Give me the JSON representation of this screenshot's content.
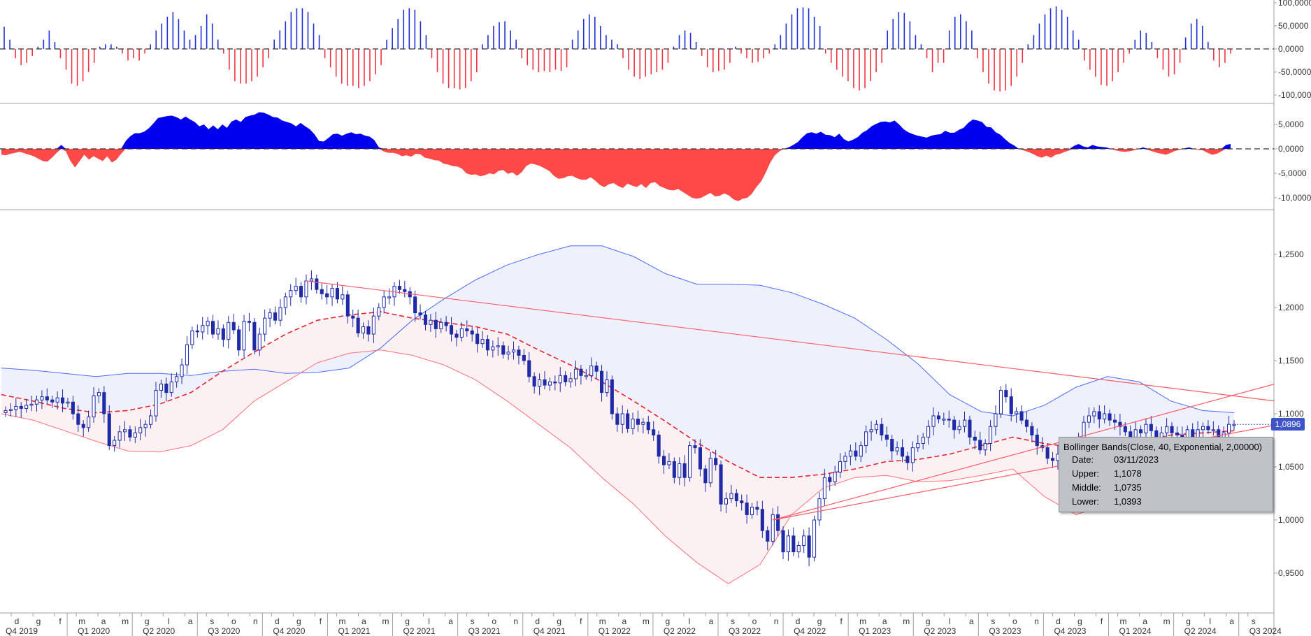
{
  "chart_data": [
    {
      "type": "bar",
      "panel": "oscillator-histogram",
      "title": "",
      "ylim": [
        -110000,
        100000
      ],
      "y_ticks": [
        "100,0000",
        "50,0000",
        "0,0000",
        "-50,0000",
        "-100,0000"
      ],
      "y_tick_values": [
        100000,
        50000,
        0,
        -50000,
        -100000
      ],
      "positive_color": "#1f2fd6",
      "negative_color": "#ee3344",
      "values": [
        48000,
        20000,
        -20000,
        -35000,
        -30000,
        -15000,
        5000,
        20000,
        40000,
        15000,
        -20000,
        -45000,
        -75000,
        -80000,
        -70000,
        -50000,
        -30000,
        5000,
        10000,
        10000,
        5000,
        -10000,
        -25000,
        -20000,
        -25000,
        -10000,
        10000,
        40000,
        55000,
        70000,
        80000,
        65000,
        40000,
        20000,
        30000,
        50000,
        75000,
        55000,
        20000,
        -10000,
        -45000,
        -70000,
        -75000,
        -75000,
        -70000,
        -60000,
        -40000,
        -20000,
        20000,
        40000,
        60000,
        80000,
        88000,
        88000,
        80000,
        55000,
        30000,
        -20000,
        -40000,
        -60000,
        -75000,
        -80000,
        -80000,
        -85000,
        -80000,
        -70000,
        -55000,
        -35000,
        20000,
        45000,
        65000,
        85000,
        88000,
        85000,
        60000,
        30000,
        -20000,
        -50000,
        -75000,
        -85000,
        -85000,
        -88000,
        -85000,
        -70000,
        -50000,
        10000,
        30000,
        50000,
        58000,
        60000,
        40000,
        20000,
        -20000,
        -35000,
        -45000,
        -50000,
        -48000,
        -50000,
        -45000,
        -48000,
        -40000,
        20000,
        40000,
        65000,
        75000,
        70000,
        50000,
        30000,
        20000,
        10000,
        -20000,
        -45000,
        -60000,
        -65000,
        -60000,
        -55000,
        -50000,
        -45000,
        -30000,
        5000,
        30000,
        40000,
        35000,
        15000,
        -15000,
        -40000,
        -50000,
        -48000,
        -45000,
        -30000,
        5000,
        -10000,
        -20000,
        -30000,
        -28000,
        -20000,
        -10000,
        10000,
        30000,
        55000,
        75000,
        88000,
        90000,
        88000,
        70000,
        50000,
        -10000,
        -30000,
        -45000,
        -60000,
        -70000,
        -85000,
        -90000,
        -85000,
        -70000,
        -50000,
        -30000,
        40000,
        65000,
        80000,
        78000,
        60000,
        30000,
        10000,
        -20000,
        -50000,
        -30000,
        -30000,
        40000,
        70000,
        75000,
        60000,
        40000,
        -20000,
        -50000,
        -75000,
        -90000,
        -92000,
        -90000,
        -80000,
        -60000,
        -30000,
        10000,
        30000,
        55000,
        75000,
        88000,
        92000,
        85000,
        70000,
        40000,
        20000,
        -25000,
        -45000,
        -60000,
        -78000,
        -80000,
        -70000,
        -50000,
        -30000,
        -10000,
        20000,
        40000,
        35000,
        15000,
        -20000,
        -45000,
        -60000,
        -55000,
        -30000,
        25000,
        55000,
        65000,
        50000,
        15000,
        -25000,
        -40000,
        -30000,
        -10000
      ]
    },
    {
      "type": "area",
      "panel": "oscillator-area",
      "title": "",
      "ylim": [
        -11500,
        8500
      ],
      "y_ticks": [
        "5,0000",
        "0,0000",
        "-5,0000",
        "-10,0000"
      ],
      "y_tick_values": [
        5000,
        0,
        -5000,
        -10000
      ],
      "positive_color": "#0000ee",
      "negative_color": "#ff4848",
      "values": [
        -1200,
        -1300,
        -1000,
        -800,
        -600,
        -900,
        -1200,
        -1500,
        -2000,
        -2500,
        -2600,
        -1800,
        -800,
        800,
        -500,
        -2500,
        -3800,
        -2500,
        -1200,
        -2200,
        -1500,
        -2000,
        -2500,
        -1500,
        -2800,
        -2200,
        -1000,
        1600,
        2600,
        3200,
        3200,
        3500,
        4200,
        5200,
        6300,
        6500,
        6700,
        6800,
        6500,
        6000,
        6600,
        6000,
        5500,
        4600,
        5000,
        4000,
        4800,
        4000,
        5000,
        4300,
        5600,
        6000,
        5500,
        6500,
        6800,
        7000,
        7500,
        7400,
        7000,
        6500,
        6400,
        5800,
        5500,
        5200,
        4600,
        5300,
        4600,
        4000,
        3000,
        1600,
        1500,
        2200,
        3000,
        3100,
        2700,
        3100,
        3400,
        3000,
        3100,
        2700,
        2500,
        1800,
        300,
        -500,
        -800,
        -800,
        -1000,
        -1500,
        -1300,
        -1600,
        -1000,
        -1100,
        -1800,
        -2000,
        -2300,
        -2400,
        -3000,
        -3200,
        -3500,
        -3600,
        -4000,
        -5000,
        -5300,
        -5200,
        -5600,
        -5400,
        -5000,
        -5200,
        -4500,
        -4300,
        -5100,
        -4800,
        -5500,
        -4800,
        -3500,
        -3000,
        -3200,
        -3500,
        -4000,
        -4500,
        -5500,
        -6100,
        -6000,
        -5600,
        -5500,
        -6000,
        -6300,
        -6300,
        -5800,
        -6500,
        -7400,
        -7800,
        -7200,
        -7000,
        -7600,
        -8000,
        -7100,
        -7500,
        -7800,
        -7200,
        -8000,
        -7000,
        -6800,
        -7600,
        -8000,
        -8400,
        -8500,
        -8200,
        -8800,
        -9400,
        -10000,
        -10200,
        -10000,
        -9500,
        -9000,
        -9700,
        -9600,
        -9100,
        -9500,
        -10300,
        -10700,
        -10200,
        -10000,
        -9200,
        -7800,
        -6700,
        -4900,
        -2800,
        -1300,
        -500,
        0,
        300,
        800,
        1400,
        2400,
        3200,
        3400,
        3100,
        3500,
        2900,
        2800,
        2400,
        3100,
        2000,
        1500,
        1900,
        2400,
        3300,
        3800,
        4600,
        5100,
        5500,
        5600,
        5400,
        5800,
        5000,
        4000,
        3400,
        3000,
        2700,
        2500,
        2300,
        2700,
        2900,
        3000,
        3700,
        3300,
        3300,
        3900,
        4300,
        5300,
        6000,
        5800,
        5500,
        4500,
        4400,
        3400,
        2900,
        2000,
        1200,
        700,
        0,
        -300,
        -600,
        -1000,
        -1500,
        -1800,
        -1400,
        -1800,
        -1200,
        -1000,
        -600,
        -300,
        600,
        1000,
        500,
        300,
        800,
        500,
        400,
        300,
        0,
        -300,
        -500,
        -600,
        -500,
        -300,
        0,
        300,
        -200,
        -500,
        -800,
        -1000,
        -1200,
        -800,
        -400,
        -200,
        100,
        300,
        0,
        -200,
        -300,
        -800,
        -1200,
        -1000,
        -500,
        800,
        1000
      ]
    },
    {
      "type": "candlestick",
      "panel": "price",
      "title": "",
      "ylim": [
        0.925,
        1.29
      ],
      "y_ticks": [
        "1,2500",
        "1,2000",
        "1,1500",
        "1,1000",
        "1,0500",
        "1,0000",
        "0,9500"
      ],
      "y_tick_values": [
        1.25,
        1.2,
        1.15,
        1.1,
        1.05,
        1.0,
        0.95
      ],
      "last_price_label": "1,0896",
      "up_color": "#ffffff",
      "down_color": "#1f2aa6",
      "candle_outline": "#1f2aa6",
      "series": [
        {
          "name": "close",
          "values": [
            1.103,
            1.104,
            1.107,
            1.105,
            1.108,
            1.109,
            1.113,
            1.116,
            1.113,
            1.111,
            1.115,
            1.11,
            1.111,
            1.1,
            1.09,
            1.087,
            1.097,
            1.117,
            1.12,
            1.1,
            1.07,
            1.075,
            1.083,
            1.085,
            1.078,
            1.082,
            1.087,
            1.09,
            1.098,
            1.122,
            1.128,
            1.12,
            1.13,
            1.135,
            1.146,
            1.165,
            1.178,
            1.177,
            1.183,
            1.187,
            1.175,
            1.18,
            1.17,
            1.186,
            1.179,
            1.16,
            1.187,
            1.186,
            1.16,
            1.175,
            1.19,
            1.195,
            1.188,
            1.2,
            1.21,
            1.216,
            1.22,
            1.21,
            1.225,
            1.227,
            1.217,
            1.213,
            1.21,
            1.218,
            1.208,
            1.212,
            1.192,
            1.19,
            1.176,
            1.182,
            1.175,
            1.192,
            1.2,
            1.21,
            1.21,
            1.22,
            1.217,
            1.215,
            1.21,
            1.195,
            1.193,
            1.184,
            1.188,
            1.18,
            1.186,
            1.183,
            1.175,
            1.172,
            1.18,
            1.178,
            1.175,
            1.166,
            1.17,
            1.16,
            1.163,
            1.164,
            1.156,
            1.158,
            1.16,
            1.155,
            1.15,
            1.135,
            1.126,
            1.132,
            1.127,
            1.13,
            1.129,
            1.136,
            1.13,
            1.133,
            1.142,
            1.136,
            1.136,
            1.145,
            1.14,
            1.12,
            1.132,
            1.1,
            1.09,
            1.1,
            1.086,
            1.095,
            1.09,
            1.092,
            1.085,
            1.08,
            1.06,
            1.052,
            1.055,
            1.04,
            1.053,
            1.04,
            1.07,
            1.068,
            1.048,
            1.035,
            1.058,
            1.052,
            1.015,
            1.02,
            1.025,
            1.018,
            1.016,
            1.005,
            1.012,
            1.01,
            0.99,
            0.98,
            1.005,
            0.99,
            0.97,
            0.985,
            0.97,
            0.976,
            0.985,
            0.965,
            1.0,
            1.02,
            1.04,
            1.036,
            1.045,
            1.055,
            1.06,
            1.065,
            1.06,
            1.07,
            1.083,
            1.085,
            1.09,
            1.08,
            1.076,
            1.065,
            1.068,
            1.06,
            1.054,
            1.068,
            1.072,
            1.078,
            1.088,
            1.098,
            1.095,
            1.095,
            1.094,
            1.085,
            1.088,
            1.094,
            1.078,
            1.075,
            1.066,
            1.072,
            1.088,
            1.1,
            1.122,
            1.116,
            1.1,
            1.102,
            1.094,
            1.088,
            1.08,
            1.07,
            1.068,
            1.058,
            1.056,
            1.062,
            1.064,
            1.06,
            1.07,
            1.078,
            1.092,
            1.098,
            1.102,
            1.095,
            1.1,
            1.094,
            1.092,
            1.088,
            1.083,
            1.078,
            1.085,
            1.082,
            1.09,
            1.084,
            1.075,
            1.082,
            1.088,
            1.082,
            1.08,
            1.072,
            1.085,
            1.074,
            1.085,
            1.088,
            1.085,
            1.085,
            1.075,
            1.082,
            1.09,
            1.09
          ]
        },
        {
          "name": "upper band",
          "values": [
            1.143,
            1.141,
            1.138,
            1.135,
            1.138,
            1.138,
            1.136,
            1.14,
            1.142,
            1.138,
            1.139,
            1.143,
            1.162,
            1.188,
            1.208,
            1.226,
            1.24,
            1.25,
            1.258,
            1.258,
            1.248,
            1.232,
            1.222,
            1.222,
            1.221,
            1.214,
            1.203,
            1.19,
            1.17,
            1.147,
            1.118,
            1.102,
            1.098,
            1.108,
            1.125,
            1.135,
            1.13,
            1.112,
            1.103,
            1.101
          ]
        },
        {
          "name": "middle band",
          "values": [
            1.118,
            1.112,
            1.105,
            1.101,
            1.103,
            1.109,
            1.12,
            1.14,
            1.158,
            1.175,
            1.188,
            1.193,
            1.196,
            1.19,
            1.186,
            1.182,
            1.175,
            1.16,
            1.146,
            1.13,
            1.112,
            1.093,
            1.073,
            1.055,
            1.04,
            1.04,
            1.043,
            1.048,
            1.055,
            1.057,
            1.062,
            1.07,
            1.078,
            1.072,
            1.068,
            1.068,
            1.073,
            1.08,
            1.082,
            1.084
          ]
        },
        {
          "name": "lower band",
          "values": [
            1.1,
            1.094,
            1.084,
            1.074,
            1.065,
            1.064,
            1.07,
            1.085,
            1.112,
            1.13,
            1.148,
            1.157,
            1.16,
            1.155,
            1.146,
            1.132,
            1.112,
            1.09,
            1.068,
            1.04,
            1.015,
            0.985,
            0.96,
            0.94,
            0.958,
            1.005,
            1.03,
            1.04,
            1.042,
            1.036,
            1.037,
            1.042,
            1.048,
            1.022,
            1.005,
            1.015,
            1.045,
            1.065,
            1.068,
            1.066
          ]
        }
      ],
      "x_month_labels": [
        "d",
        "g",
        "f",
        "m",
        "a",
        "m",
        "g",
        "l",
        "a",
        "s",
        "o",
        "n",
        "d",
        "g",
        "f",
        "m",
        "a",
        "m",
        "g",
        "l",
        "a",
        "s",
        "o",
        "n",
        "d",
        "g",
        "f",
        "m",
        "a",
        "m",
        "g",
        "l",
        "a",
        "s",
        "o",
        "n",
        "d",
        "g",
        "f",
        "m",
        "a",
        "m",
        "g",
        "l",
        "a",
        "s",
        "o",
        "n",
        "d",
        "g",
        "f",
        "m",
        "a",
        "m",
        "g",
        "l",
        "a",
        "s"
      ],
      "x_quarter_labels": [
        "Q4 2019",
        "Q1 2020",
        "Q2 2020",
        "Q3 2020",
        "Q4 2020",
        "Q1 2021",
        "Q2 2021",
        "Q3 2021",
        "Q4 2021",
        "Q1 2022",
        "Q2 2022",
        "Q3 2022",
        "Q4 2022",
        "Q1 2023",
        "Q2 2023",
        "Q3 2023",
        "Q4 2023",
        "Q1 2024",
        "Q2 2024",
        "Q3 2024"
      ]
    }
  ],
  "tooltip": {
    "title": "Bollinger Bands(Close, 40, Exponential, 2,00000)",
    "rows": [
      {
        "label": "Date:",
        "value": "03/11/2023"
      },
      {
        "label": "Upper:",
        "value": "1,1078"
      },
      {
        "label": "Middle:",
        "value": "1,0735"
      },
      {
        "label": "Lower:",
        "value": "1,0393"
      }
    ]
  },
  "colors": {
    "upper_band_line": "#4a6cff",
    "lower_band_line": "#ff6f7a",
    "middle_band_line": "#e8232f",
    "upper_band_fill": "#eef0fb",
    "lower_band_fill": "#fcf1f2",
    "trendline": "#ff5a66",
    "panel_border": "#a0a0a0",
    "axis_text": "#333333"
  }
}
